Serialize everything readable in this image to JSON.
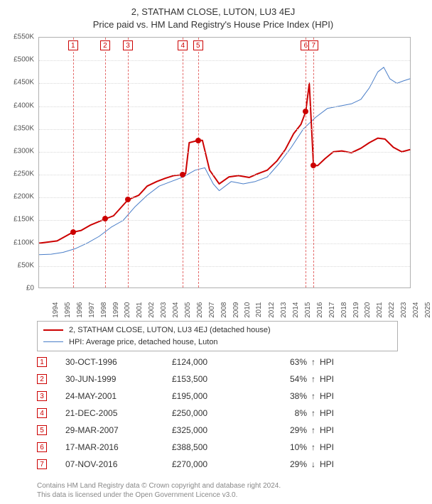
{
  "title": {
    "line1": "2, STATHAM CLOSE, LUTON, LU3 4EJ",
    "line2": "Price paid vs. HM Land Registry's House Price Index (HPI)",
    "fontsize": 13,
    "color": "#333333"
  },
  "chart": {
    "type": "line",
    "background_color": "#ffffff",
    "border_color": "#b0b0b0",
    "grid_color": "#d8d8d8",
    "marker_line_color": "#e46a6a",
    "marker_box_border": "#cc0000",
    "y": {
      "min": 0,
      "max": 550,
      "step": 50,
      "labels": [
        "£0",
        "£50K",
        "£100K",
        "£150K",
        "£200K",
        "£250K",
        "£300K",
        "£350K",
        "£400K",
        "£450K",
        "£500K",
        "£550K"
      ],
      "label_fontsize": 10,
      "label_color": "#555555"
    },
    "x": {
      "min": 1994,
      "max": 2025,
      "years": [
        1994,
        1995,
        1996,
        1997,
        1998,
        1999,
        2000,
        2001,
        2002,
        2003,
        2004,
        2005,
        2006,
        2007,
        2008,
        2009,
        2010,
        2011,
        2012,
        2013,
        2014,
        2015,
        2016,
        2017,
        2018,
        2019,
        2020,
        2021,
        2022,
        2023,
        2024,
        2025
      ],
      "label_fontsize": 10,
      "label_color": "#555555"
    },
    "series": {
      "price_paid": {
        "color": "#cc0000",
        "width": 2,
        "points": [
          [
            1994.0,
            100
          ],
          [
            1995.5,
            105
          ],
          [
            1996.8,
            124
          ],
          [
            1997.5,
            128
          ],
          [
            1998.3,
            140
          ],
          [
            1999.5,
            153
          ],
          [
            2000.2,
            160
          ],
          [
            2001.4,
            195
          ],
          [
            2002.3,
            205
          ],
          [
            2003.0,
            225
          ],
          [
            2003.8,
            235
          ],
          [
            2004.5,
            242
          ],
          [
            2005.2,
            248
          ],
          [
            2005.97,
            250
          ],
          [
            2006.2,
            252
          ],
          [
            2006.5,
            320
          ],
          [
            2007.24,
            325
          ],
          [
            2007.6,
            325
          ],
          [
            2008.2,
            260
          ],
          [
            2009.0,
            230
          ],
          [
            2009.8,
            245
          ],
          [
            2010.6,
            248
          ],
          [
            2011.5,
            244
          ],
          [
            2012.2,
            252
          ],
          [
            2013.0,
            260
          ],
          [
            2013.8,
            280
          ],
          [
            2014.5,
            305
          ],
          [
            2015.2,
            340
          ],
          [
            2015.8,
            360
          ],
          [
            2016.2,
            388
          ],
          [
            2016.5,
            450
          ],
          [
            2016.85,
            270
          ],
          [
            2017.2,
            270
          ],
          [
            2017.8,
            285
          ],
          [
            2018.5,
            300
          ],
          [
            2019.2,
            302
          ],
          [
            2020.0,
            298
          ],
          [
            2020.8,
            308
          ],
          [
            2021.5,
            320
          ],
          [
            2022.2,
            330
          ],
          [
            2022.8,
            328
          ],
          [
            2023.5,
            310
          ],
          [
            2024.2,
            300
          ],
          [
            2024.9,
            305
          ]
        ],
        "dot_color": "#cc0000"
      },
      "hpi": {
        "color": "#4a7ec8",
        "width": 1,
        "points": [
          [
            1994.0,
            75
          ],
          [
            1995.0,
            76
          ],
          [
            1996.0,
            80
          ],
          [
            1997.0,
            88
          ],
          [
            1998.0,
            100
          ],
          [
            1999.0,
            115
          ],
          [
            2000.0,
            135
          ],
          [
            2001.0,
            150
          ],
          [
            2002.0,
            180
          ],
          [
            2003.0,
            205
          ],
          [
            2004.0,
            225
          ],
          [
            2005.0,
            235
          ],
          [
            2006.0,
            245
          ],
          [
            2007.0,
            260
          ],
          [
            2007.8,
            265
          ],
          [
            2008.5,
            230
          ],
          [
            2009.0,
            215
          ],
          [
            2010.0,
            235
          ],
          [
            2011.0,
            230
          ],
          [
            2012.0,
            235
          ],
          [
            2013.0,
            245
          ],
          [
            2014.0,
            275
          ],
          [
            2015.0,
            310
          ],
          [
            2016.0,
            350
          ],
          [
            2017.0,
            375
          ],
          [
            2018.0,
            395
          ],
          [
            2019.0,
            400
          ],
          [
            2020.0,
            405
          ],
          [
            2020.8,
            415
          ],
          [
            2021.5,
            440
          ],
          [
            2022.2,
            475
          ],
          [
            2022.7,
            485
          ],
          [
            2023.2,
            460
          ],
          [
            2023.8,
            450
          ],
          [
            2024.3,
            455
          ],
          [
            2024.9,
            460
          ]
        ]
      }
    },
    "sale_markers": [
      {
        "n": 1,
        "year": 1996.83,
        "value": 124
      },
      {
        "n": 2,
        "year": 1999.5,
        "value": 153.5
      },
      {
        "n": 3,
        "year": 2001.4,
        "value": 195
      },
      {
        "n": 4,
        "year": 2005.97,
        "value": 250
      },
      {
        "n": 5,
        "year": 2007.24,
        "value": 325
      },
      {
        "n": 6,
        "year": 2016.21,
        "value": 388.5
      },
      {
        "n": 7,
        "year": 2016.85,
        "value": 270
      }
    ]
  },
  "legend": {
    "border_color": "#b0b0b0",
    "fontsize": 11,
    "items": [
      {
        "label": "2, STATHAM CLOSE, LUTON, LU3 4EJ (detached house)",
        "color": "#cc0000",
        "width": 2
      },
      {
        "label": "HPI: Average price, detached house, Luton",
        "color": "#4a7ec8",
        "width": 1
      }
    ]
  },
  "sales_table": {
    "fontsize": 12,
    "num_border_color": "#cc0000",
    "rows": [
      {
        "n": "1",
        "date": "30-OCT-1996",
        "price": "£124,000",
        "pct": "63%",
        "arrow": "↑",
        "hpi": "HPI"
      },
      {
        "n": "2",
        "date": "30-JUN-1999",
        "price": "£153,500",
        "pct": "54%",
        "arrow": "↑",
        "hpi": "HPI"
      },
      {
        "n": "3",
        "date": "24-MAY-2001",
        "price": "£195,000",
        "pct": "38%",
        "arrow": "↑",
        "hpi": "HPI"
      },
      {
        "n": "4",
        "date": "21-DEC-2005",
        "price": "£250,000",
        "pct": "8%",
        "arrow": "↑",
        "hpi": "HPI"
      },
      {
        "n": "5",
        "date": "29-MAR-2007",
        "price": "£325,000",
        "pct": "29%",
        "arrow": "↑",
        "hpi": "HPI"
      },
      {
        "n": "6",
        "date": "17-MAR-2016",
        "price": "£388,500",
        "pct": "10%",
        "arrow": "↑",
        "hpi": "HPI"
      },
      {
        "n": "7",
        "date": "07-NOV-2016",
        "price": "£270,000",
        "pct": "29%",
        "arrow": "↓",
        "hpi": "HPI"
      }
    ]
  },
  "footnote": {
    "line1": "Contains HM Land Registry data © Crown copyright and database right 2024.",
    "line2": "This data is licensed under the Open Government Licence v3.0.",
    "color": "#888888",
    "fontsize": 10
  }
}
